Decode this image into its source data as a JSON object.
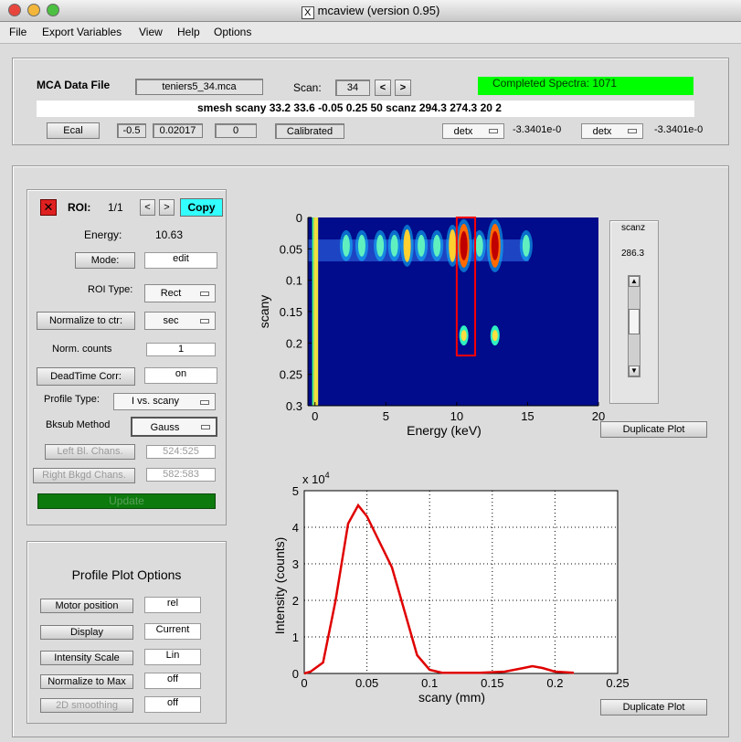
{
  "window": {
    "title": "mcaview (version 0.95)"
  },
  "menu": [
    "File",
    "Export Variables",
    "View",
    "Help",
    "Options"
  ],
  "header": {
    "mca_label": "MCA Data File",
    "mca_file": "teniers5_34.mca",
    "scan_label": "Scan:",
    "scan_value": "34",
    "prev": "<",
    "next": ">",
    "status": "Completed Spectra: 1071",
    "status_color": "#00ff00",
    "command": "smesh  scany 33.2 33.6 -0.05 0.25 50  scanz 294.3 274.3 20  2",
    "ecal_label": "Ecal",
    "ecal_a": "-0.5",
    "ecal_b": "0.02017",
    "ecal_c": "0",
    "calibrated": "Calibrated",
    "det1": "detx",
    "det1_value": "-3.3401e-0",
    "det2": "detx",
    "det2_value": "-3.3401e-0"
  },
  "roi": {
    "close_icon": "x-icon",
    "label": "ROI:",
    "index": "1/1",
    "prev": "<",
    "next": ">",
    "copy": "Copy",
    "energy_label": "Energy:",
    "energy_value": "10.63",
    "mode_label": "Mode:",
    "mode_value": "edit",
    "type_label": "ROI Type:",
    "type_value": "Rect",
    "normalize_label": "Normalize to ctr:",
    "normalize_value": "sec",
    "norm_counts_label": "Norm. counts",
    "norm_counts_value": "1",
    "deadtime_label": "DeadTime Corr:",
    "deadtime_value": "on",
    "profile_type_label": "Profile Type:",
    "profile_type_value": "I vs. scany",
    "bksub_label": "Bksub Method",
    "bksub_value": "Gauss",
    "left_bkg_label": "Left Bl. Chans.",
    "left_bkg_value": "524:525",
    "right_bkg_label": "Right Bkgd Chans.",
    "right_bkg_value": "582:583",
    "update": "Update"
  },
  "profile_options": {
    "title": "Profile Plot Options",
    "rows": [
      {
        "label": "Motor position",
        "value": "rel",
        "disabled": false
      },
      {
        "label": "Display",
        "value": "Current",
        "disabled": false
      },
      {
        "label": "Intensity Scale",
        "value": "Lin",
        "disabled": false
      },
      {
        "label": "Normalize to Max",
        "value": "off",
        "disabled": false
      },
      {
        "label": "2D smoothing",
        "value": "off",
        "disabled": true
      }
    ]
  },
  "scanz": {
    "label": "scanz",
    "value": "286.3",
    "up": "▲",
    "down": "▼"
  },
  "buttons": {
    "duplicate_top": "Duplicate Plot",
    "duplicate_bottom": "Duplicate Plot"
  },
  "chart_data": [
    {
      "type": "heatmap",
      "xlabel": "Energy (keV)",
      "ylabel": "scany",
      "x_ticks": [
        0,
        5,
        10,
        15,
        20
      ],
      "y_ticks": [
        0,
        0.05,
        0.1,
        0.15,
        0.2,
        0.25,
        0.3
      ],
      "x_tick_labels": [
        "0",
        "5",
        "10",
        "15",
        "20"
      ],
      "y_tick_labels": [
        "0",
        "0.05",
        "0.1",
        "0.15",
        "0.2",
        "0.25",
        "0.3"
      ],
      "xlim": [
        -0.5,
        20
      ],
      "ylim": [
        0,
        0.3
      ],
      "y_reversed": true,
      "roi_box": {
        "x": [
          10.0,
          11.3
        ],
        "y": [
          0.0,
          0.22
        ]
      },
      "roi_color": "#ff0000",
      "background_color": "#000c8c",
      "peak_energies": [
        0,
        2.2,
        3.3,
        4.6,
        5.6,
        6.5,
        7.5,
        8.6,
        9.7,
        10.5,
        11.6,
        12.7,
        14.9
      ]
    },
    {
      "type": "line",
      "xlabel": "scany (mm)",
      "ylabel": "Intensity (counts)",
      "y_exponent": "x 10^4",
      "exponent_base": "x 10",
      "exponent_power": "4",
      "x_ticks": [
        0,
        0.05,
        0.1,
        0.15,
        0.2,
        0.25
      ],
      "y_ticks": [
        0,
        1,
        2,
        3,
        4,
        5
      ],
      "x_tick_labels": [
        "0",
        "0.05",
        "0.1",
        "0.15",
        "0.2",
        "0.25"
      ],
      "y_tick_labels": [
        "0",
        "1",
        "2",
        "3",
        "4",
        "5"
      ],
      "xlim": [
        0,
        0.25
      ],
      "ylim": [
        0,
        5
      ],
      "grid": true,
      "color": "#e00000",
      "series": [
        {
          "x": [
            0.0,
            0.005,
            0.015,
            0.025,
            0.035,
            0.043,
            0.05,
            0.06,
            0.07,
            0.08,
            0.09,
            0.1,
            0.11,
            0.12,
            0.14,
            0.16,
            0.175,
            0.182,
            0.19,
            0.2,
            0.215
          ],
          "y": [
            0.0,
            0.05,
            0.3,
            2.0,
            4.1,
            4.6,
            4.3,
            3.6,
            2.9,
            1.7,
            0.5,
            0.1,
            0.02,
            0.02,
            0.02,
            0.05,
            0.15,
            0.2,
            0.15,
            0.05,
            0.02
          ]
        }
      ]
    }
  ]
}
